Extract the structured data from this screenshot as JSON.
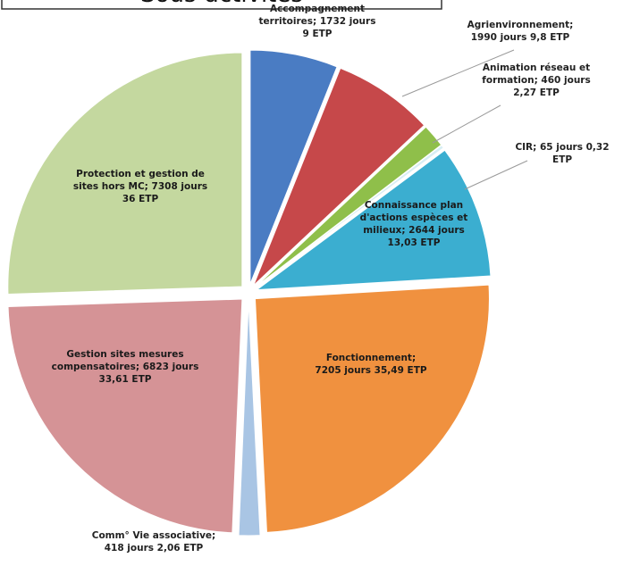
{
  "chart_data": {
    "type": "pie",
    "title": "Sous-activités",
    "unit": "jours",
    "colors": [
      "#4A7CC3",
      "#C6484A",
      "#8FBF4A",
      "#D8EEF4",
      "#3BAED0",
      "#F0913F",
      "#A9C5E4",
      "#D59396",
      "#C4D89F"
    ],
    "slices": [
      {
        "name": "Accompagnement territoires",
        "label_lines": [
          "Accompagnement",
          "territoires; 1732  jours",
          "9 ETP"
        ],
        "value": 1732,
        "etp": "9"
      },
      {
        "name": "Agrienvironnement",
        "label_lines": [
          "Agrienvironnement;",
          "1990  jours 9,8 ETP"
        ],
        "value": 1990,
        "etp": "9,8"
      },
      {
        "name": "Animation réseau et formation",
        "label_lines": [
          "Animation réseau et",
          "formation; 460 jours",
          "2,27 ETP"
        ],
        "value": 460,
        "etp": "2,27"
      },
      {
        "name": "CIR",
        "label_lines": [
          "CIR; 65 jours 0,32",
          "ETP"
        ],
        "value": 65,
        "etp": "0,32"
      },
      {
        "name": "Connaissance plan d'actions espèces et milieux",
        "label_lines": [
          "Connaissance plan",
          "d'actions espèces et",
          "milieux; 2644 jours",
          "13,03 ETP"
        ],
        "value": 2644,
        "etp": "13,03"
      },
      {
        "name": "Fonctionnement",
        "label_lines": [
          "Fonctionnement;",
          "7205 jours 35,49 ETP"
        ],
        "value": 7205,
        "etp": "35,49"
      },
      {
        "name": "Comm° Vie associative",
        "label_lines": [
          "Comm° Vie associative;",
          "418 jours 2,06 ETP"
        ],
        "value": 418,
        "etp": "2,06"
      },
      {
        "name": "Gestion sites mesures compensatoires",
        "label_lines": [
          "Gestion sites mesures",
          "compensatoires; 6823 jours",
          "33,61 ETP"
        ],
        "value": 6823,
        "etp": "33,61"
      },
      {
        "name": "Protection et gestion de sites hors MC",
        "label_lines": [
          "Protection et gestion de",
          "sites hors MC; 7308 jours",
          "36 ETP"
        ],
        "value": 7308,
        "etp": "36"
      }
    ]
  }
}
